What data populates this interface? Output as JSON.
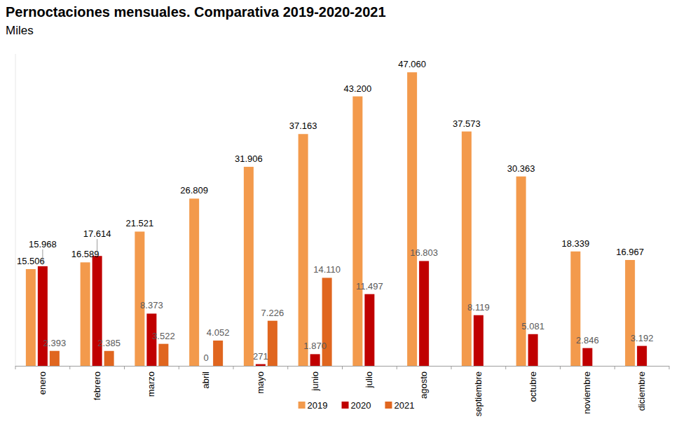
{
  "chart_data": {
    "type": "bar",
    "title": "Pernoctaciones mensuales. Comparativa 2019-2020-2021",
    "subtitle": "Miles",
    "categories": [
      "enero",
      "febrero",
      "marzo",
      "abril",
      "mayo",
      "junio",
      "julio",
      "agosto",
      "septiembre",
      "octubre",
      "noviembre",
      "diciembre"
    ],
    "series": [
      {
        "name": "2019",
        "color": "#f39a4c",
        "values": [
          15506,
          16589,
          21521,
          26809,
          31906,
          37163,
          43200,
          47060,
          37573,
          30363,
          18339,
          16967
        ],
        "value_labels": [
          "15.506",
          "16.589",
          "21.521",
          "26.809",
          "31.906",
          "37.163",
          "43.200",
          "47.060",
          "37.573",
          "30.363",
          "18.339",
          "16.967"
        ]
      },
      {
        "name": "2020",
        "color": "#c00000",
        "values": [
          15968,
          17614,
          8373,
          0,
          271,
          1870,
          11497,
          16803,
          8119,
          5081,
          2846,
          3192
        ],
        "value_labels": [
          "15.968",
          "17.614",
          "8.373",
          "0",
          "271",
          "1.870",
          "11.497",
          "16.803",
          "8.119",
          "5.081",
          "2.846",
          "3.192"
        ]
      },
      {
        "name": "2021",
        "color": "#e0661f",
        "values": [
          2393,
          2385,
          3522,
          4052,
          7226,
          14110,
          null,
          null,
          null,
          null,
          null,
          null
        ],
        "value_labels": [
          "2.393",
          "2.385",
          "3.522",
          "4.052",
          "7.226",
          "14.110",
          null,
          null,
          null,
          null,
          null,
          null
        ]
      }
    ],
    "ylim": [
      0,
      50000
    ],
    "data_labels": true,
    "tick_labels": "x",
    "legend": "bottom",
    "grid": false
  }
}
